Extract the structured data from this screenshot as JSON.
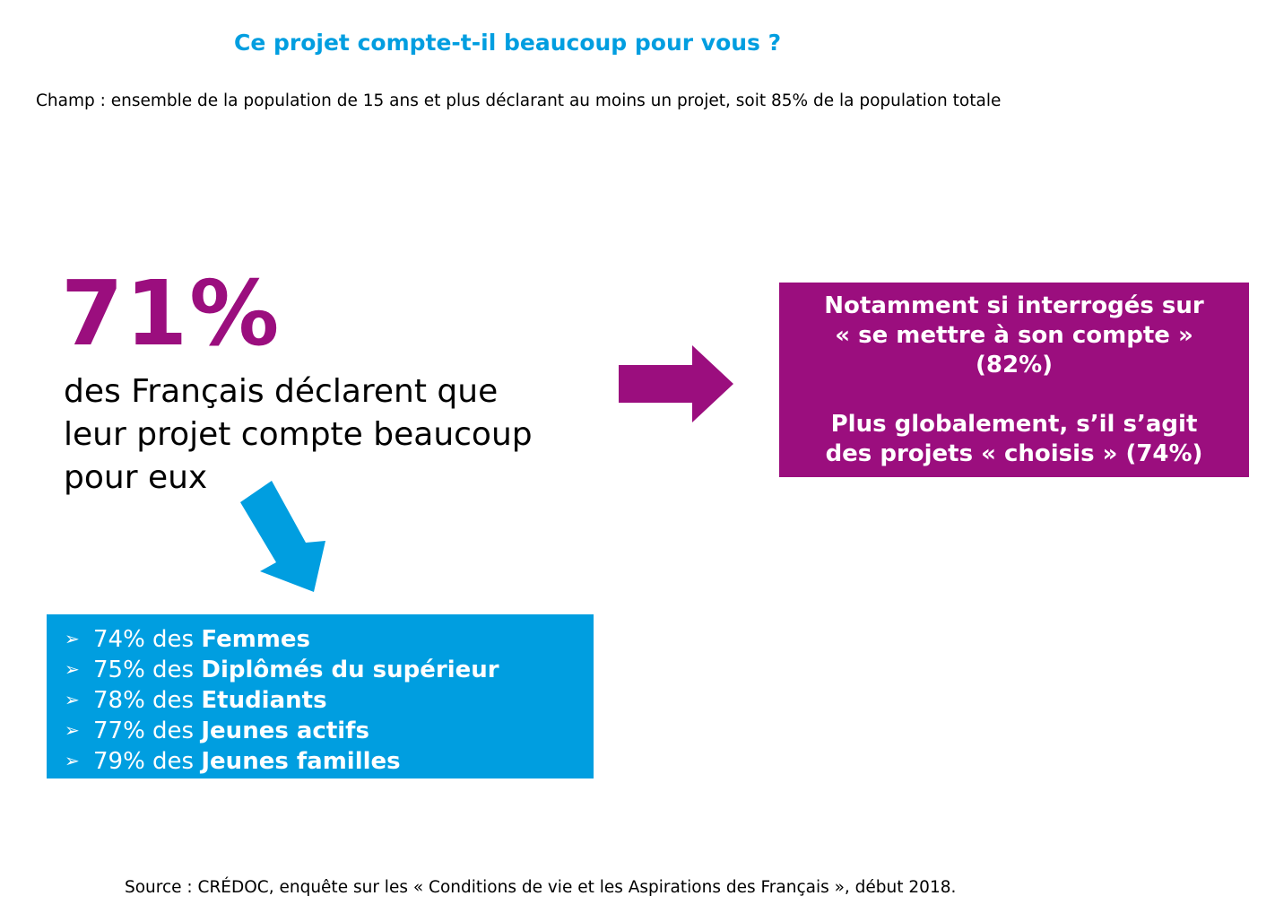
{
  "title": "Ce projet compte-t-il beaucoup pour vous ?",
  "scope": "Champ : ensemble de la population de 15 ans et plus déclarant au moins un projet, soit 85% de la population totale",
  "headline": {
    "percent": "71%",
    "line1": "des Français déclarent que",
    "line2": "leur projet compte beaucoup",
    "line3": "pour eux"
  },
  "purple_box": {
    "line1": "Notamment si interrogés sur",
    "line2": "« se mettre à son compte »",
    "line3": "(82%)",
    "line4": "Plus globalement, s’il s’agit",
    "line5": "des projets « choisis » (74%)"
  },
  "blue_box": {
    "bullet": "➢",
    "items": [
      {
        "prefix": "74% des ",
        "bold": "Femmes"
      },
      {
        "prefix": "75% des ",
        "bold": "Diplômés du supérieur"
      },
      {
        "prefix": "78% des ",
        "bold": "Etudiants"
      },
      {
        "prefix": "77% des ",
        "bold": "Jeunes actifs"
      },
      {
        "prefix": "79% des ",
        "bold": "Jeunes familles"
      }
    ]
  },
  "source": "Source : CRÉDOC, enquête sur les « Conditions de vie et les Aspirations des Français », début 2018.",
  "colors": {
    "title_blue": "#009ee0",
    "accent_purple": "#9b0e7e",
    "box_blue": "#009ee0"
  },
  "icons": {
    "right_arrow": "arrow-right-icon",
    "down_arrow": "arrow-down-icon"
  }
}
